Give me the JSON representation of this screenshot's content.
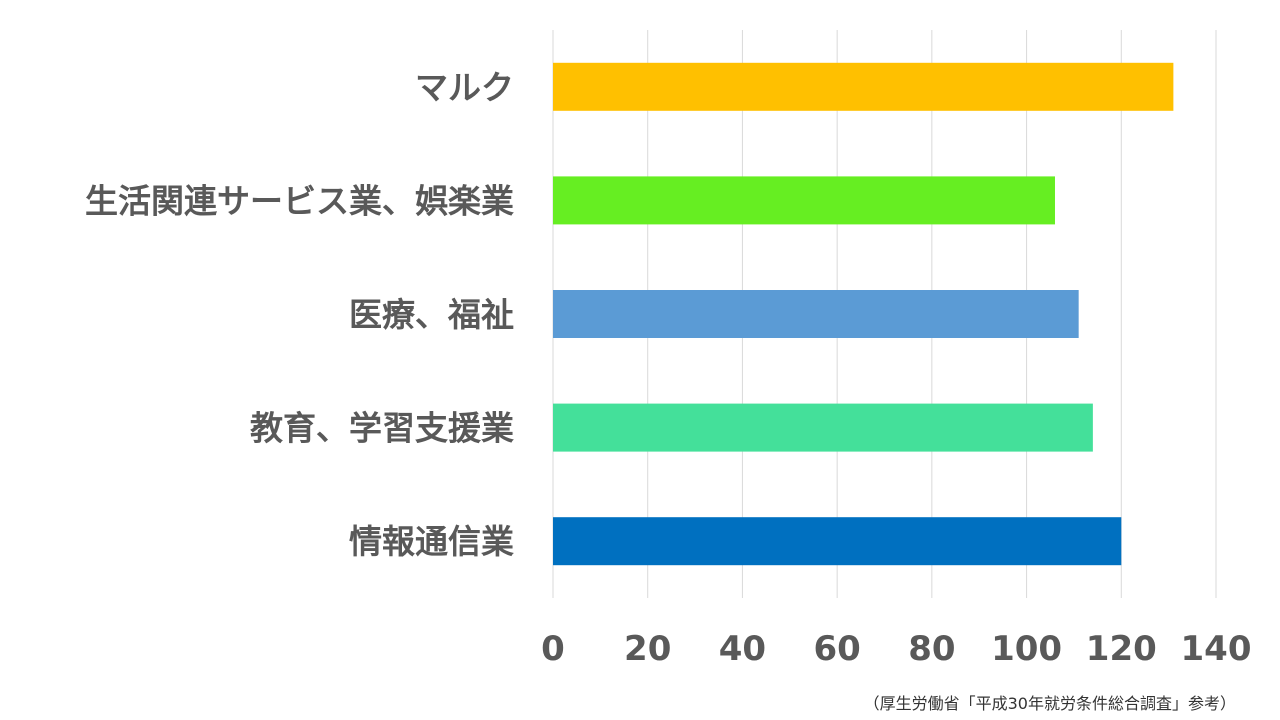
{
  "chart_data": {
    "type": "bar",
    "orientation": "horizontal",
    "categories": [
      "マルク",
      "生活関連サービス業、娯楽業",
      "医療、福祉",
      "教育、学習支援業",
      "情報通信業"
    ],
    "values": [
      131,
      106,
      111,
      114,
      120
    ],
    "colors": [
      "#FFC000",
      "#66EE22",
      "#5B9BD5",
      "#44E09A",
      "#0070C0"
    ],
    "xlim": [
      0,
      140
    ],
    "xticks": [
      0,
      20,
      40,
      60,
      80,
      100,
      120,
      140
    ],
    "xtick_labels": [
      "0",
      "20",
      "40",
      "60",
      "80",
      "100",
      "120",
      "140"
    ],
    "grid": true,
    "legend": "none",
    "title": "",
    "xlabel": "",
    "ylabel": ""
  },
  "source_note": "（厚生労働省「平成30年就労条件総合調査」参考）"
}
